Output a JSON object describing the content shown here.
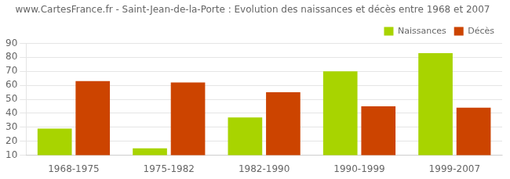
{
  "chart_data": {
    "type": "bar",
    "title": "www.CartesFrance.fr - Saint-Jean-de-la-Porte : Evolution des naissances et décès entre 1968 et 2007",
    "categories": [
      "1968-1975",
      "1975-1982",
      "1982-1990",
      "1990-1999",
      "1999-2007"
    ],
    "series": [
      {
        "name": "Naissances",
        "color": "#a8d400",
        "values": [
          29,
          15,
          37,
          70,
          83
        ]
      },
      {
        "name": "Décès",
        "color": "#cc4400",
        "values": [
          63,
          62,
          55,
          45,
          44
        ]
      }
    ],
    "ylim": [
      10,
      90
    ],
    "yticks": [
      10,
      20,
      30,
      40,
      50,
      60,
      70,
      80,
      90
    ],
    "grid": true,
    "legend": "upper-right"
  }
}
